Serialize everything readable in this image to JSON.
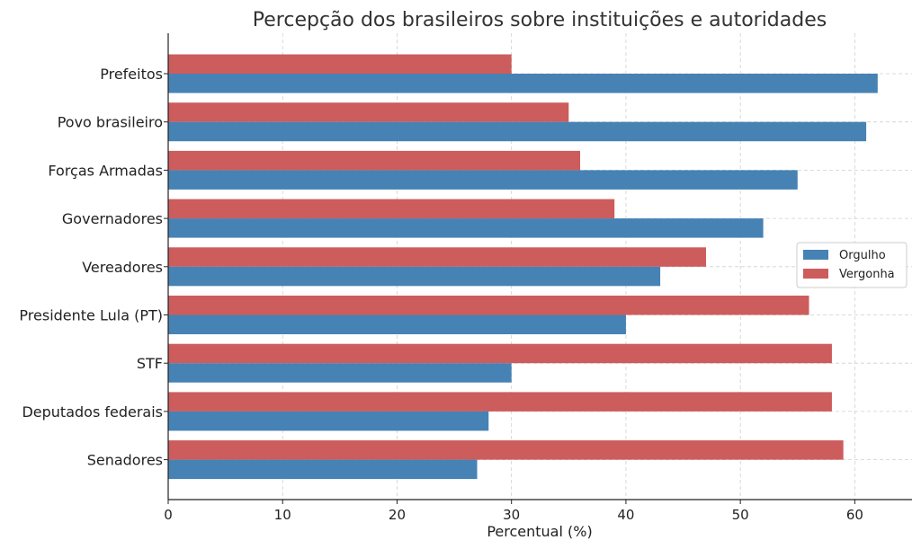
{
  "chart_data": {
    "type": "bar",
    "orientation": "horizontal",
    "title": "Percepção dos brasileiros sobre instituições e autoridades",
    "xlabel": "Percentual (%)",
    "ylabel": "",
    "xlim": [
      0,
      65
    ],
    "xticks": [
      0,
      10,
      20,
      30,
      40,
      50,
      60
    ],
    "grid": true,
    "legend_position": "right",
    "categories": [
      "Prefeitos",
      "Povo brasileiro",
      "Forças Armadas",
      "Governadores",
      "Vereadores",
      "Presidente Lula (PT)",
      "STF",
      "Deputados federais",
      "Senadores"
    ],
    "series": [
      {
        "name": "Orgulho",
        "color": "#4682b4",
        "values": [
          62,
          61,
          55,
          52,
          43,
          40,
          30,
          28,
          27
        ]
      },
      {
        "name": "Vergonha",
        "color": "#cd5c5c",
        "values": [
          30,
          35,
          36,
          39,
          47,
          56,
          58,
          58,
          59
        ]
      }
    ]
  }
}
